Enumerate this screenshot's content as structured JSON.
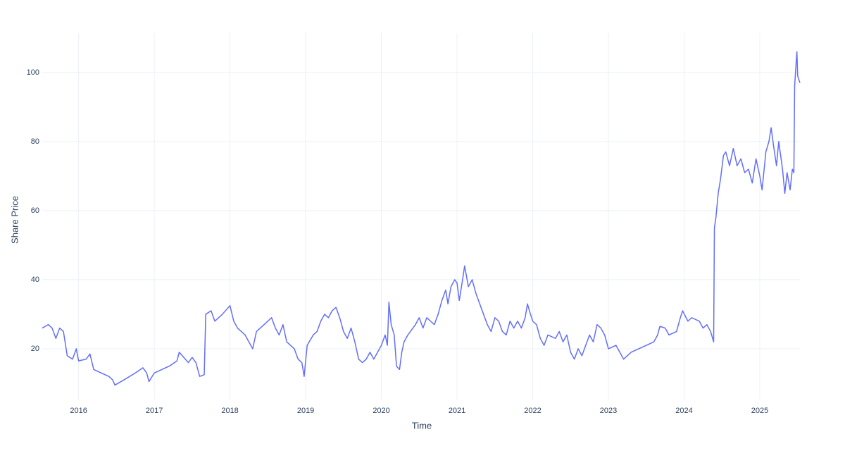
{
  "chart_data": {
    "type": "line",
    "x_label": "Time",
    "y_label": "Share Price",
    "xlim": [
      2015.52,
      2025.53
    ],
    "xticks": [
      2016,
      2017,
      2018,
      2019,
      2020,
      2021,
      2022,
      2023,
      2024,
      2025
    ],
    "ylim": [
      5.3,
      111.4
    ],
    "yticks": [
      20,
      40,
      60,
      80,
      100
    ],
    "grid": true,
    "series": [
      {
        "name": "Share Price",
        "color": "#636efa",
        "x": [
          2015.52,
          2015.6,
          2015.65,
          2015.7,
          2015.75,
          2015.8,
          2015.85,
          2015.92,
          2015.97,
          2016.0,
          2016.1,
          2016.15,
          2016.2,
          2016.3,
          2016.4,
          2016.45,
          2016.48,
          2016.6,
          2016.75,
          2016.85,
          2016.9,
          2016.93,
          2017.0,
          2017.2,
          2017.3,
          2017.33,
          2017.45,
          2017.5,
          2017.55,
          2017.6,
          2017.66,
          2017.68,
          2017.75,
          2017.8,
          2017.9,
          2018.0,
          2018.05,
          2018.1,
          2018.2,
          2018.25,
          2018.3,
          2018.35,
          2018.45,
          2018.55,
          2018.6,
          2018.65,
          2018.7,
          2018.75,
          2018.8,
          2018.85,
          2018.9,
          2018.95,
          2018.98,
          2019.02,
          2019.1,
          2019.15,
          2019.2,
          2019.25,
          2019.3,
          2019.35,
          2019.4,
          2019.45,
          2019.5,
          2019.55,
          2019.6,
          2019.65,
          2019.7,
          2019.75,
          2019.8,
          2019.85,
          2019.9,
          2019.95,
          2020.0,
          2020.05,
          2020.08,
          2020.1,
          2020.13,
          2020.17,
          2020.2,
          2020.24,
          2020.27,
          2020.3,
          2020.35,
          2020.45,
          2020.5,
          2020.55,
          2020.6,
          2020.65,
          2020.7,
          2020.75,
          2020.8,
          2020.85,
          2020.88,
          2020.92,
          2020.97,
          2021.0,
          2021.03,
          2021.08,
          2021.1,
          2021.15,
          2021.2,
          2021.25,
          2021.3,
          2021.35,
          2021.4,
          2021.45,
          2021.5,
          2021.55,
          2021.6,
          2021.65,
          2021.7,
          2021.75,
          2021.8,
          2021.85,
          2021.9,
          2021.93,
          2021.97,
          2022.0,
          2022.05,
          2022.1,
          2022.15,
          2022.2,
          2022.3,
          2022.35,
          2022.4,
          2022.45,
          2022.5,
          2022.55,
          2022.6,
          2022.65,
          2022.7,
          2022.75,
          2022.8,
          2022.85,
          2022.9,
          2022.95,
          2023.0,
          2023.1,
          2023.15,
          2023.2,
          2023.25,
          2023.3,
          2023.4,
          2023.5,
          2023.6,
          2023.65,
          2023.68,
          2023.75,
          2023.8,
          2023.9,
          2023.95,
          2023.98,
          2024.05,
          2024.1,
          2024.2,
          2024.25,
          2024.3,
          2024.35,
          2024.39,
          2024.4,
          2024.42,
          2024.45,
          2024.48,
          2024.52,
          2024.55,
          2024.6,
          2024.65,
          2024.7,
          2024.75,
          2024.8,
          2024.85,
          2024.9,
          2024.95,
          2025.0,
          2025.03,
          2025.08,
          2025.12,
          2025.15,
          2025.18,
          2025.22,
          2025.25,
          2025.3,
          2025.33,
          2025.36,
          2025.4,
          2025.43,
          2025.45,
          2025.46,
          2025.48,
          2025.49,
          2025.5,
          2025.53
        ],
        "values": [
          26,
          27,
          26,
          23,
          26,
          25,
          18,
          17,
          20,
          16.5,
          17,
          18.5,
          14,
          13,
          12,
          11,
          9.5,
          11,
          13,
          14.5,
          13,
          10.5,
          13,
          15,
          16.5,
          19,
          16,
          17.5,
          16,
          12,
          12.5,
          30,
          31,
          28,
          30,
          32.5,
          28,
          26,
          24,
          22,
          20,
          25,
          27,
          29,
          26,
          24,
          27,
          22,
          21,
          20,
          17,
          16,
          12,
          21,
          24,
          25,
          28,
          30,
          29,
          31,
          32,
          29,
          25,
          23,
          26,
          22,
          17,
          16,
          17,
          19,
          17,
          19,
          21,
          24,
          21,
          33.5,
          27,
          24,
          15,
          14,
          19,
          22,
          24,
          27,
          29,
          26,
          29,
          28,
          27,
          30,
          34,
          37,
          33,
          38,
          40,
          39,
          34,
          41,
          44,
          38,
          40,
          36,
          33,
          30,
          27,
          25,
          29,
          28,
          25,
          24,
          28,
          26,
          28,
          26,
          29,
          33,
          30,
          28,
          27,
          23,
          21,
          24,
          23,
          25,
          22,
          24,
          19,
          17,
          20,
          18,
          21,
          24,
          22,
          27,
          26,
          24,
          20,
          21,
          19,
          17,
          18,
          19,
          20,
          21,
          22,
          24,
          26.5,
          26,
          24,
          25,
          29,
          31,
          28,
          29,
          28,
          26,
          27,
          25,
          22,
          55,
          58,
          65,
          69,
          76,
          77,
          73,
          78,
          73,
          75,
          71,
          72,
          68,
          75,
          70,
          66,
          77,
          80,
          84,
          79,
          73,
          80,
          72,
          65,
          71,
          66,
          72,
          71,
          96,
          103,
          106,
          99,
          97
        ]
      }
    ]
  }
}
